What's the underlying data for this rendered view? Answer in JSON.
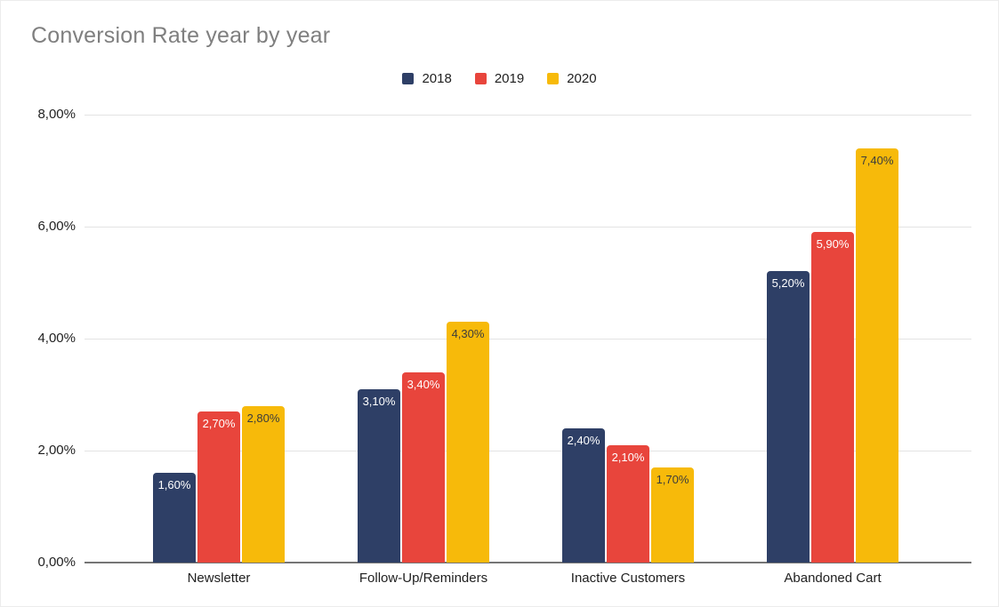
{
  "chart_data": {
    "type": "bar",
    "title": "Conversion Rate year by year",
    "categories": [
      "Newsletter",
      "Follow-Up/Reminders",
      "Inactive Customers",
      "Abandoned Cart"
    ],
    "series": [
      {
        "name": "2018",
        "color": "#2e3f66",
        "label_color": "#ffffff",
        "values": [
          1.6,
          3.1,
          2.4,
          5.2
        ],
        "labels": [
          "1,60%",
          "3,10%",
          "2,40%",
          "5,20%"
        ]
      },
      {
        "name": "2019",
        "color": "#e8453c",
        "label_color": "#ffffff",
        "values": [
          2.7,
          3.4,
          2.1,
          5.9
        ],
        "labels": [
          "2,70%",
          "3,40%",
          "2,10%",
          "5,90%"
        ]
      },
      {
        "name": "2020",
        "color": "#f7ba0a",
        "label_color": "#3c3c3c",
        "values": [
          2.8,
          4.3,
          1.7,
          7.4
        ],
        "labels": [
          "2,80%",
          "4,30%",
          "1,70%",
          "7,40%"
        ]
      }
    ],
    "y_axis": {
      "ticks": [
        {
          "value": 0,
          "label": "0,00%"
        },
        {
          "value": 2,
          "label": "2,00%"
        },
        {
          "value": 4,
          "label": "4,00%"
        },
        {
          "value": 6,
          "label": "6,00%"
        },
        {
          "value": 8,
          "label": "8,00%"
        }
      ],
      "min": 0,
      "max": 8
    },
    "xlabel": "",
    "ylabel": "",
    "legend_position": "top-center",
    "grid": true,
    "value_format": "percent-comma-decimal"
  },
  "colors": {
    "title_text": "#7f7f7f",
    "axis_line": "#757575",
    "gridline": "#e3e3e3",
    "label_text": "#1f1f1f"
  }
}
